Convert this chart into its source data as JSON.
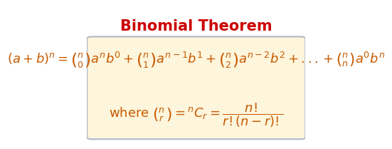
{
  "title": "Binomial Theorem",
  "title_color": "#cc0000",
  "title_fontsize": 15,
  "formula_line1": "$(a+b)^{n} = \\binom{n}{0}a^{n}b^{0} + \\binom{n}{1}a^{n-1}b^{1} + \\binom{n}{2}a^{n-2}b^{2} + ... + \\binom{n}{n}a^{0}b^{n}$",
  "formula_line2": "$\\text{where } \\binom{n}{r} = {}^{n}C_{r} = \\dfrac{n!}{r!(n-r)!}$",
  "formula_color": "#c85a00",
  "formula_fontsize": 13,
  "box_facecolor": "#fdf5dc",
  "box_edgecolor": "#b0b8c8",
  "background_color": "#ffffff",
  "fig_width": 4.74,
  "fig_height": 1.92
}
